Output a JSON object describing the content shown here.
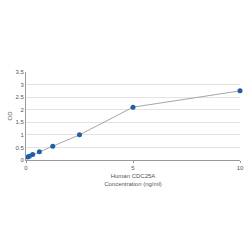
{
  "chart_data": {
    "type": "line",
    "x_label": "Human CDC25A\nConcentration (ng/ml)",
    "y_label": "OD",
    "x": [
      0.078,
      0.156,
      0.312,
      0.625,
      1.25,
      2.5,
      5,
      10
    ],
    "series": [
      {
        "color": "#1f5fa8",
        "marker": "circle",
        "line_style": "solid",
        "values": [
          0.12,
          0.15,
          0.22,
          0.33,
          0.55,
          1.0,
          2.1,
          2.75
        ]
      }
    ],
    "xlim": [
      0,
      10
    ],
    "xticks": [
      0,
      5,
      10
    ],
    "ylim": [
      0,
      3.5
    ],
    "yticks": [
      0,
      0.5,
      1,
      1.5,
      2,
      2.5,
      3,
      3.5
    ],
    "grid": true
  }
}
